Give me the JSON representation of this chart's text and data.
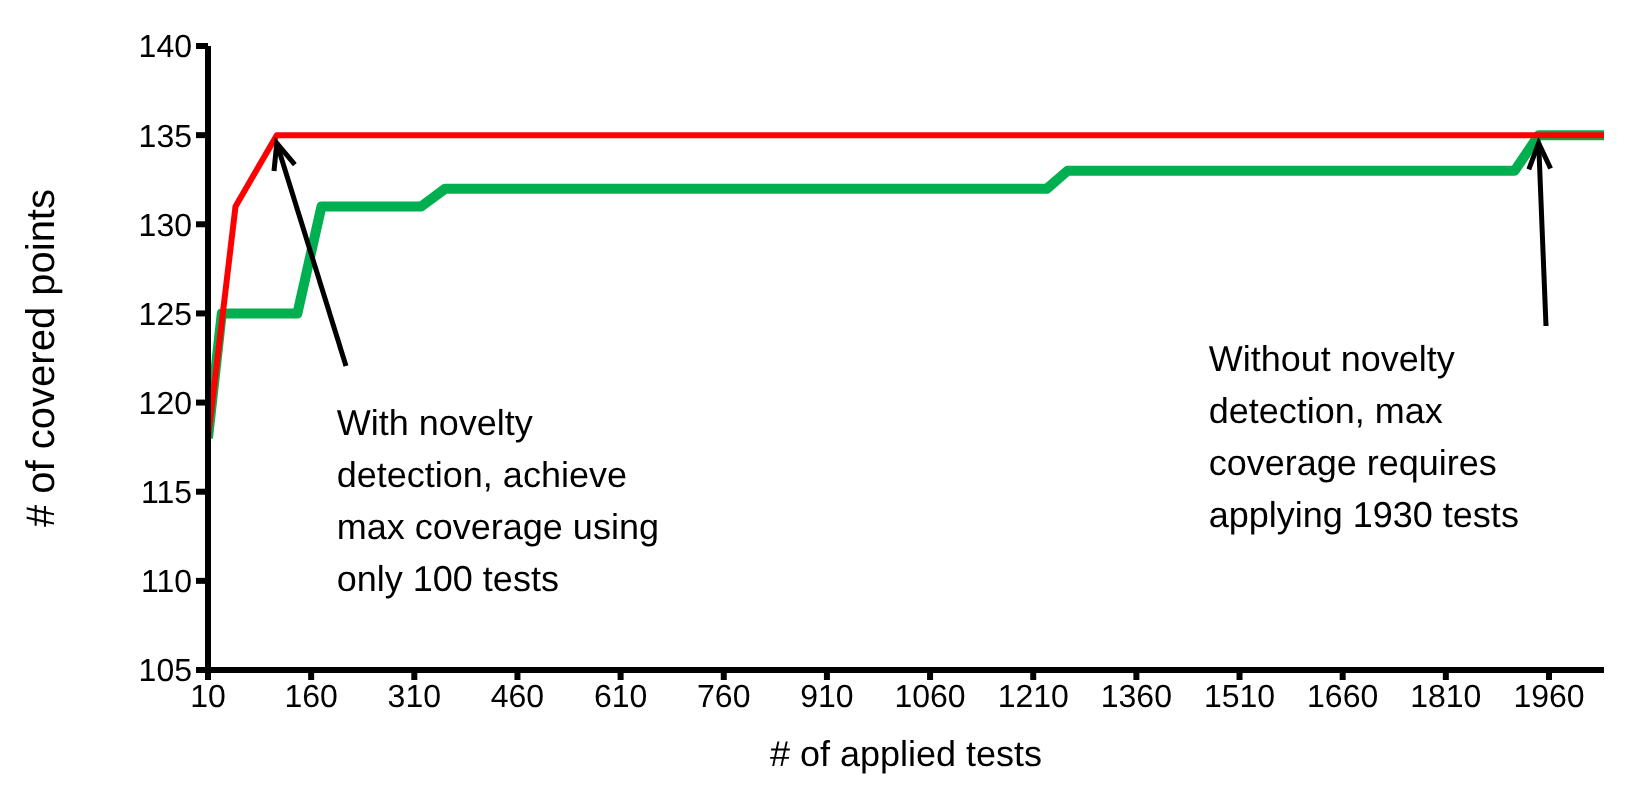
{
  "chart_data": {
    "type": "line",
    "xlabel": "# of applied tests",
    "ylabel": "# of covered points",
    "xlim": [
      10,
      2040
    ],
    "xticks": [
      10,
      160,
      310,
      460,
      610,
      760,
      910,
      1060,
      1210,
      1360,
      1510,
      1660,
      1810,
      1960
    ],
    "ylim": [
      105,
      140
    ],
    "yticks": [
      105,
      110,
      115,
      120,
      125,
      130,
      135,
      140
    ],
    "marker": "none",
    "line_style": "solid",
    "series": [
      {
        "color": "#ff0000",
        "x": [
          10,
          50,
          110,
          2040
        ],
        "values": [
          118,
          131,
          135,
          135
        ]
      },
      {
        "color": "#00b050",
        "x": [
          10,
          30,
          55,
          140,
          175,
          320,
          355,
          1230,
          1260,
          1910,
          1945,
          2040
        ],
        "values": [
          118,
          125,
          125,
          125,
          131,
          131,
          132,
          132,
          133,
          133,
          135,
          135
        ]
      }
    ],
    "annotations": [
      {
        "text": "With novelty\ndetection, achieve\nmax coverage using\nonly 100 tests",
        "x": 110,
        "y": 135
      },
      {
        "text": "Without novelty\ndetection, max\ncoverage requires\napplying 1930 tests",
        "x": 1945,
        "y": 135
      }
    ]
  }
}
